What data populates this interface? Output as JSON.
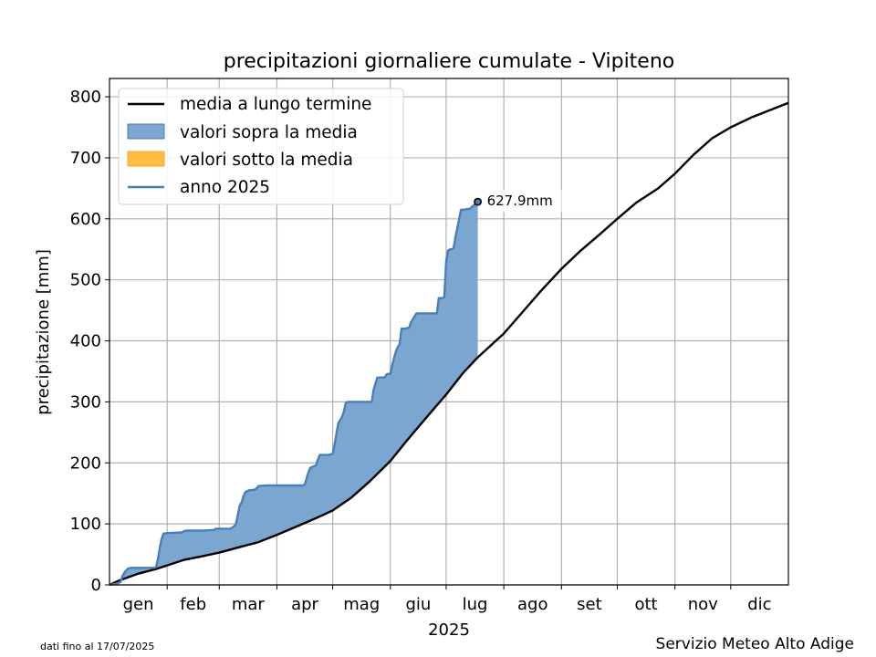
{
  "chart_data": {
    "type": "area",
    "title": "precipitazioni giornaliere cumulate - Vipiteno",
    "xlabel": "2025",
    "ylabel": "precipitazione [mm]",
    "ylim": [
      0,
      830
    ],
    "xlim": [
      0,
      365
    ],
    "yticks": [
      0,
      100,
      200,
      300,
      400,
      500,
      600,
      700,
      800
    ],
    "yticklabels": [
      "0",
      "100",
      "200",
      "300",
      "400",
      "500",
      "600",
      "700",
      "800"
    ],
    "month_boundaries": [
      0,
      31,
      59,
      90,
      120,
      151,
      181,
      212,
      243,
      273,
      304,
      334,
      365
    ],
    "month_labels": [
      "gen",
      "feb",
      "mar",
      "apr",
      "mag",
      "giu",
      "lug",
      "ago",
      "set",
      "ott",
      "nov",
      "dic"
    ],
    "grid": true,
    "legend_position": "top-left",
    "legend": [
      "media a lungo termine",
      "valori sopra la media",
      "valori sotto la media",
      "anno 2025"
    ],
    "series": [
      {
        "name": "media a lungo termine",
        "x": [
          0,
          5,
          15,
          25,
          31,
          40,
          50,
          59,
          70,
          80,
          90,
          100,
          110,
          120,
          130,
          140,
          151,
          160,
          170,
          181,
          190,
          198,
          212,
          222,
          232,
          243,
          253,
          263,
          273,
          283,
          295,
          304,
          314,
          324,
          334,
          345,
          355,
          365
        ],
        "values": [
          0,
          7,
          18,
          26,
          32,
          41,
          47,
          53,
          62,
          70,
          82,
          95,
          108,
          122,
          143,
          170,
          203,
          237,
          273,
          312,
          347,
          373,
          412,
          447,
          482,
          518,
          547,
          573,
          600,
          626,
          650,
          674,
          705,
          732,
          750,
          766,
          778,
          790
        ]
      },
      {
        "name": "anno 2025",
        "x": [
          0,
          4,
          6,
          7,
          8,
          9,
          10,
          12,
          13,
          14,
          16,
          24,
          25,
          26,
          27,
          28,
          29,
          31,
          39,
          40,
          41,
          42,
          50,
          56,
          57,
          65,
          67,
          68,
          69,
          70,
          71,
          72,
          73,
          75,
          78,
          79,
          80,
          84,
          100,
          104,
          105,
          106,
          107,
          108,
          111,
          112,
          113,
          118,
          119,
          120,
          121,
          123,
          125,
          126,
          127,
          128,
          130,
          131,
          132,
          141,
          142,
          143,
          144,
          146,
          148,
          149,
          150,
          151,
          152,
          153,
          154,
          155,
          156,
          157,
          159,
          160,
          161,
          162,
          164,
          165,
          169,
          170,
          172,
          176,
          177,
          179,
          180,
          181,
          182,
          183,
          184,
          185,
          186,
          188,
          189,
          190,
          191,
          192,
          193,
          194,
          195,
          197,
          198
        ],
        "values": [
          0,
          2,
          5,
          15,
          20,
          24,
          27,
          28,
          28,
          28,
          28,
          28,
          29,
          42,
          60,
          75,
          84,
          85,
          86,
          88,
          89,
          89,
          89,
          90,
          92,
          92,
          96,
          100,
          115,
          130,
          135,
          145,
          152,
          155,
          156,
          158,
          162,
          163,
          163,
          163,
          165,
          175,
          185,
          192,
          196,
          205,
          213,
          213,
          214,
          215,
          230,
          265,
          275,
          284,
          298,
          300,
          300,
          300,
          300,
          300,
          320,
          330,
          340,
          340,
          340,
          345,
          346,
          346,
          360,
          372,
          383,
          390,
          395,
          420,
          420,
          421,
          421,
          430,
          440,
          445,
          445,
          445,
          445,
          445,
          470,
          470,
          472,
          530,
          548,
          550,
          550,
          552,
          570,
          600,
          615,
          615,
          615,
          616,
          616,
          617,
          620,
          625,
          628
        ]
      }
    ],
    "annotations": [
      {
        "x": 198,
        "y": 627.9,
        "text": "627.9mm"
      }
    ],
    "colors": {
      "mean_line": "#000000",
      "year_line": "#4a7fb5",
      "fill_above": "#7ba6cf",
      "fill_below": "#ffbb44",
      "legend_below_edge": "#f5a623",
      "grid": "#b0b0b0"
    }
  },
  "footnote": "dati fino al 17/07/2025",
  "credit": "Servizio Meteo Alto Adige"
}
